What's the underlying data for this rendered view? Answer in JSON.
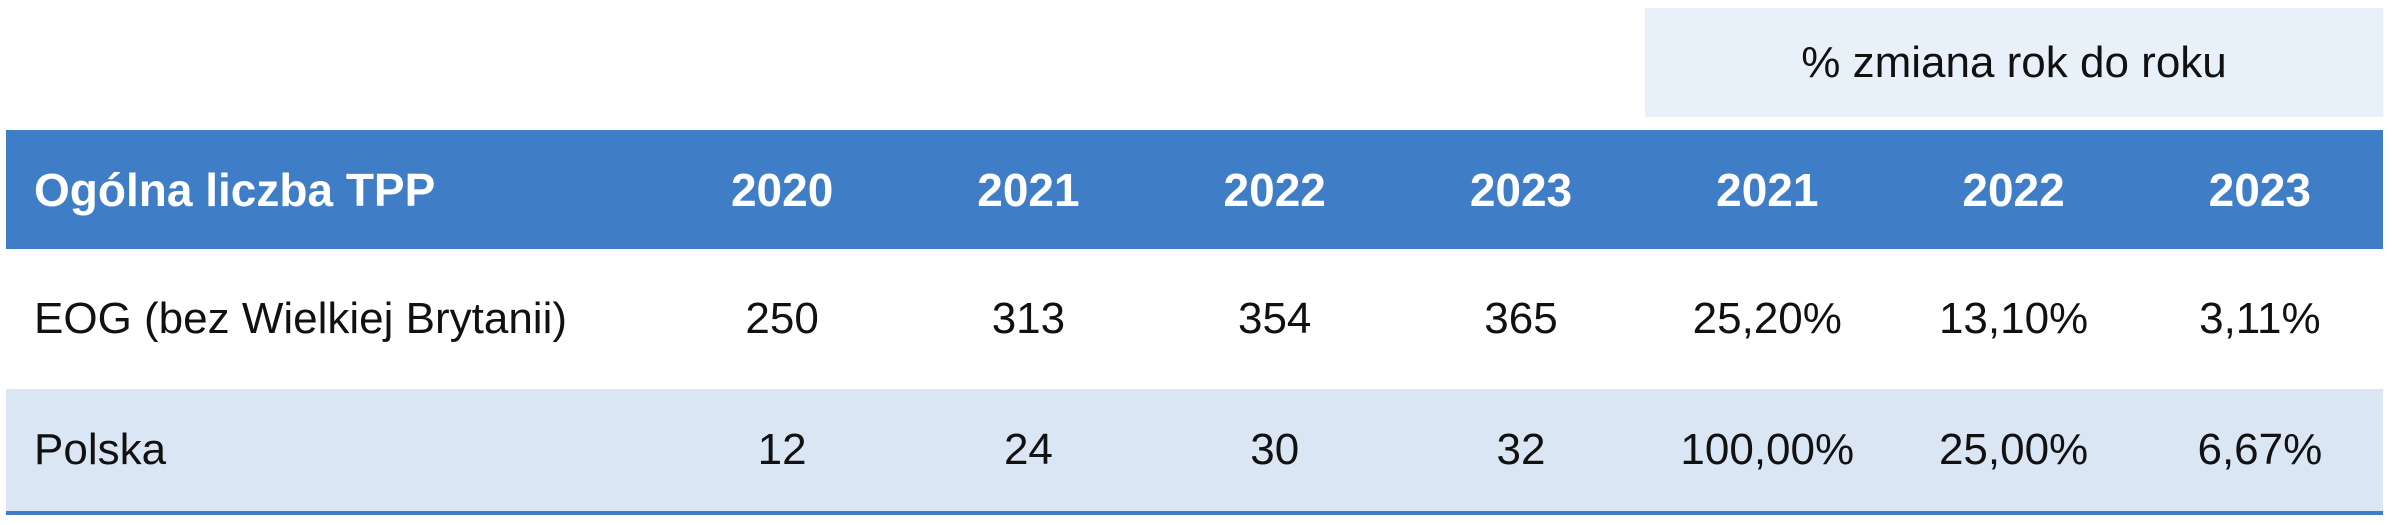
{
  "header": {
    "group_label": "% zmiana rok do roku",
    "columns": [
      "Ogólna liczba TPP",
      "2020",
      "2021",
      "2022",
      "2023",
      "2021",
      "2022",
      "2023"
    ]
  },
  "table": {
    "rows": [
      [
        "EOG (bez Wielkiej Brytanii)",
        "250",
        "313",
        "354",
        "365",
        "25,20%",
        "13,10%",
        "3,11%"
      ],
      [
        "Polska",
        "12",
        "24",
        "30",
        "32",
        "100,00%",
        "25,00%",
        "6,67%"
      ]
    ]
  }
}
